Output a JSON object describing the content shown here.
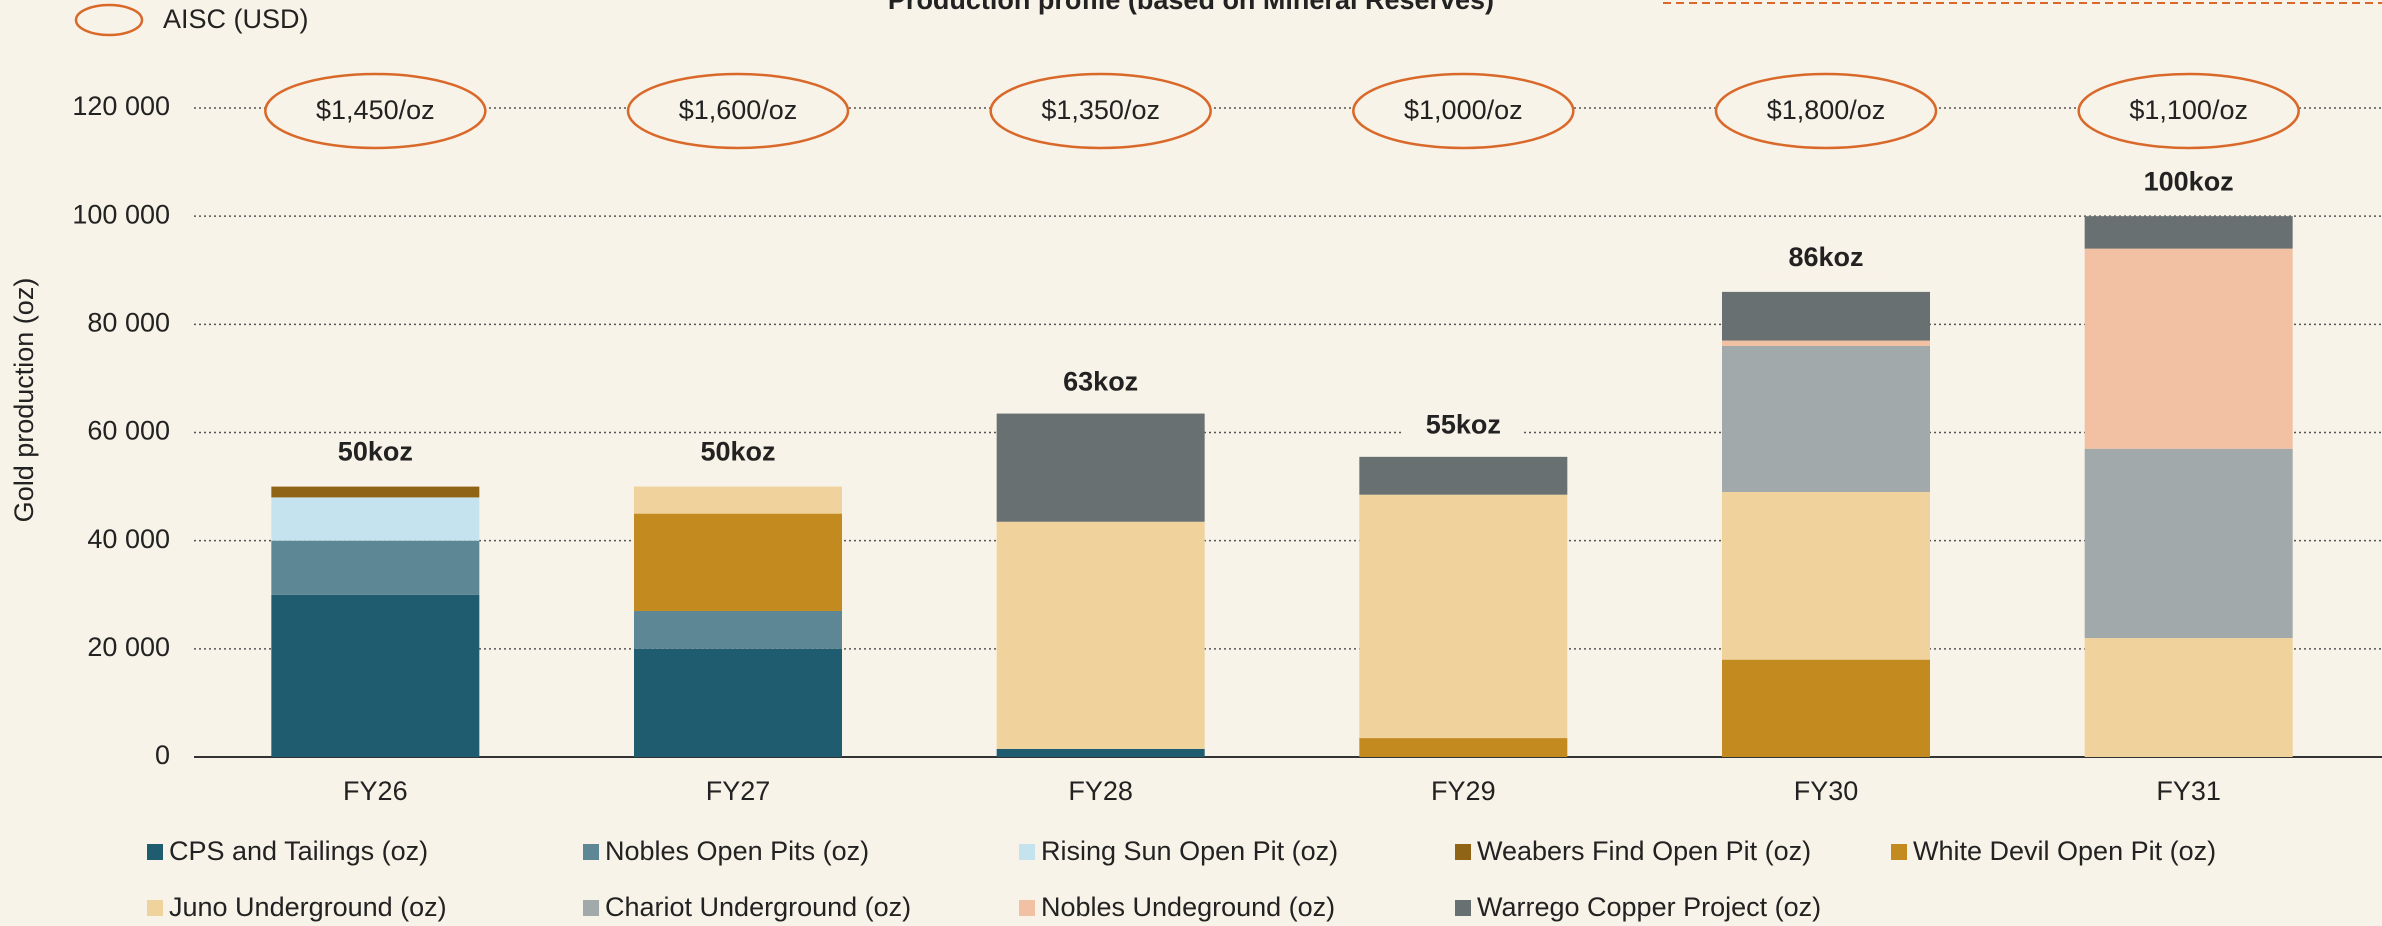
{
  "chart_data": {
    "type": "stacked_bar",
    "title": "Production profile (based on Mineral Reserves)",
    "y_label": "Gold production (oz)",
    "categories": [
      "FY26",
      "FY27",
      "FY28",
      "FY29",
      "FY30",
      "FY31"
    ],
    "series": [
      {
        "name": "CPS and Tailings (oz)",
        "color": "#1f5c70",
        "values": [
          30000,
          20000,
          1500,
          0,
          0,
          0
        ]
      },
      {
        "name": "Nobles Open Pits (oz)",
        "color": "#5e8796",
        "values": [
          10000,
          7000,
          0,
          0,
          0,
          0
        ]
      },
      {
        "name": "Rising Sun Open Pit (oz)",
        "color": "#c5e3ee",
        "values": [
          8000,
          0,
          0,
          0,
          0,
          0
        ]
      },
      {
        "name": "Weabers Find Open Pit (oz)",
        "color": "#8f6416",
        "values": [
          2000,
          0,
          0,
          0,
          0,
          0
        ]
      },
      {
        "name": "White Devil Open Pit (oz)",
        "color": "#c38a20",
        "values": [
          0,
          18000,
          0,
          3500,
          18000,
          0
        ]
      },
      {
        "name": "Juno Underground (oz)",
        "color": "#f0d29c",
        "values": [
          0,
          5000,
          42000,
          45000,
          31000,
          22000
        ]
      },
      {
        "name": "Chariot Underground (oz)",
        "color": "#a2a9aa",
        "values": [
          0,
          0,
          0,
          0,
          27000,
          35000
        ]
      },
      {
        "name": "Nobles Undeground (oz)",
        "color": "#f2c0a2",
        "values": [
          0,
          0,
          0,
          0,
          1000,
          37000
        ]
      },
      {
        "name": "Warrego Copper Project (oz)",
        "color": "#687072",
        "values": [
          0,
          0,
          20000,
          7000,
          9000,
          6000
        ]
      }
    ],
    "totals": {
      "values": [
        50000,
        50000,
        63000,
        55000,
        86000,
        100000
      ],
      "value_labels": [
        "50koz",
        "50koz",
        "63koz",
        "55koz",
        "86koz",
        "100koz"
      ]
    },
    "aisc": {
      "name": "AISC (USD)",
      "color": "#d9692a",
      "values": [
        1450,
        1600,
        1350,
        1000,
        1800,
        1100
      ],
      "value_labels": [
        "$1,450/oz",
        "$1,600/oz",
        "$1,350/oz",
        "$1,000/oz",
        "$1,800/oz",
        "$1,100/oz"
      ]
    },
    "ylim": [
      0,
      120000
    ],
    "yticks": [
      0,
      {
        "value": 20000,
        "label": "20 000"
      },
      {
        "value": 40000,
        "label": "40 000"
      },
      {
        "value": 60000,
        "label": "60 000"
      },
      {
        "value": 80000,
        "label": "80 000"
      },
      {
        "value": 100000,
        "label": "100 000"
      },
      {
        "value": 120000,
        "label": "120 000"
      }
    ],
    "grid": true
  }
}
